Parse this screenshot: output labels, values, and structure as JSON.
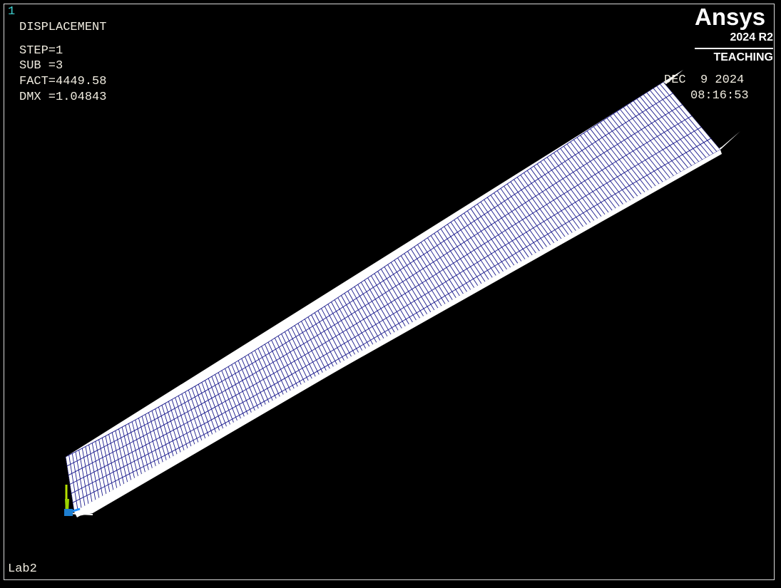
{
  "window": {
    "number": "1",
    "title_label": "Lab2"
  },
  "result": {
    "title": "DISPLACEMENT",
    "step": "STEP=1",
    "sub": "SUB =3",
    "fact": "FACT=4449.58",
    "dmx": "DMX =1.04843"
  },
  "timestamp": {
    "date": "DEC  9 2024",
    "time": "08:16:53"
  },
  "logo": {
    "brand": "Ansys",
    "version": "2024 R2",
    "edition": "TEACHING"
  },
  "colors": {
    "background": "#000000",
    "mesh_lines": "#1a1a8c",
    "mesh_face": "#ffffff",
    "window_number": "#3fd0d0",
    "text": "#f0ece0",
    "triad_x": "#ffffff",
    "triad_y": "#b6e000",
    "triad_z": "#1e90ff"
  },
  "icons": {
    "triad": "global-axis-triad-icon"
  }
}
